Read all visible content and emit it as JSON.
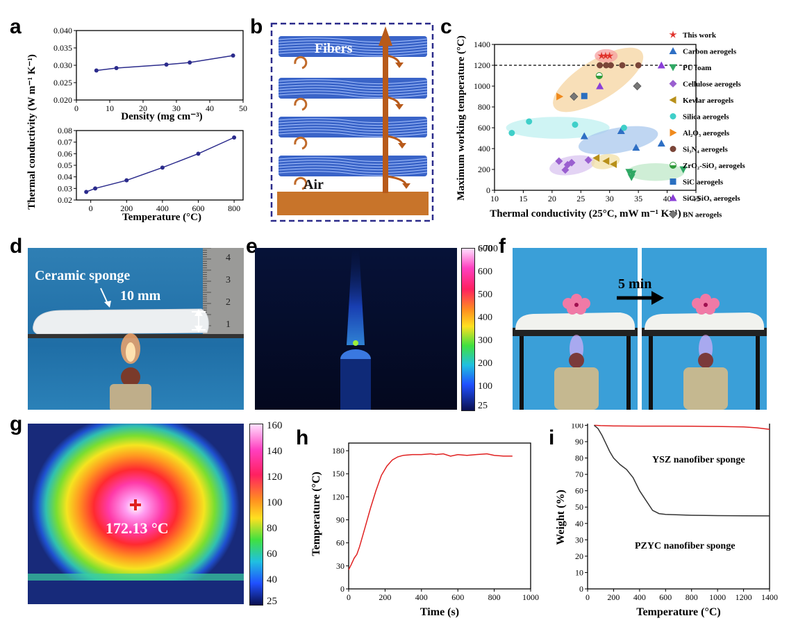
{
  "panel_labels": {
    "a": "a",
    "b": "b",
    "c": "c",
    "d": "d",
    "e": "e",
    "f": "f",
    "g": "g",
    "h": "h",
    "i": "i"
  },
  "panel_a": {
    "ylabel": "Thermal conductivity (W m⁻¹ K⁻¹)",
    "top_xlabel": "Density (mg cm⁻³)",
    "bottom_xlabel": "Temperature (°C)"
  },
  "panel_b": {
    "fibers_label": "Fibers",
    "air_label": "Air"
  },
  "panel_c": {
    "xlabel": "Thermal conductivity (25°C, mW m⁻¹ K⁻¹)",
    "ylabel": "Maximum working temperature (°C)",
    "legend": [
      {
        "label": "This work",
        "color": "#e0302a",
        "marker": "star"
      },
      {
        "label": "Carbon aerogels",
        "color": "#2e6fc4",
        "marker": "triangle-up"
      },
      {
        "label": "PU foam",
        "color": "#2fa864",
        "marker": "triangle-down"
      },
      {
        "label": "Cellulose aerogels",
        "color": "#9a5fd0",
        "marker": "diamond"
      },
      {
        "label": "Kevlar aerogels",
        "color": "#b8901a",
        "marker": "triangle-left"
      },
      {
        "label": "Silica aerogels",
        "color": "#3fcfc9",
        "marker": "circle"
      },
      {
        "label": "Al₂O₃ aerogels",
        "color": "#f08a1d",
        "marker": "triangle-right"
      },
      {
        "label": "Si₃N₄ aerogels",
        "color": "#7a4538",
        "marker": "circle"
      },
      {
        "label": "ZrO₂-SiO₂ aerogels",
        "color": "#2f9a3a",
        "marker": "half-circle"
      },
      {
        "label": "SiC aerogels",
        "color": "#2a6fc0",
        "marker": "square"
      },
      {
        "label": "SiC-SiOₓ aerogels",
        "color": "#8a3fd8",
        "marker": "half-triangle"
      },
      {
        "label": "BN aerogels",
        "color": "#777777",
        "marker": "half-diamond"
      }
    ]
  },
  "panel_d": {
    "sponge_label": "Ceramic sponge",
    "thickness_label": "10 mm",
    "ruler_digits": [
      "4",
      "3",
      "2",
      "1"
    ]
  },
  "panel_e": {
    "colorbar_ticks": [
      ">700",
      "600",
      "500",
      "400",
      "300",
      "200",
      "100",
      "25"
    ]
  },
  "panel_f": {
    "time_label": "5 min"
  },
  "panel_g": {
    "temperature_label": "172.13 °C",
    "colorbar_ticks": [
      "160",
      "140",
      "120",
      "100",
      "80",
      "60",
      "40",
      "25"
    ]
  },
  "chart_data": [
    {
      "panel": "a-top",
      "type": "line",
      "xlabel": "Density (mg cm⁻³)",
      "ylabel": "Thermal conductivity (W m⁻¹ K⁻¹)",
      "x": [
        6,
        12,
        27,
        34,
        47
      ],
      "y": [
        0.0285,
        0.0292,
        0.0302,
        0.0308,
        0.0328
      ],
      "xlim": [
        0,
        50
      ],
      "ylim": [
        0.02,
        0.04
      ],
      "xticks": [
        0,
        10,
        20,
        30,
        40,
        50
      ],
      "yticks": [
        "0.020",
        "0.025",
        "0.030",
        "0.035",
        "0.040"
      ],
      "color": "#2b2b8c"
    },
    {
      "panel": "a-bottom",
      "type": "line",
      "xlabel": "Temperature (°C)",
      "x": [
        -25,
        25,
        200,
        400,
        600,
        800
      ],
      "y": [
        0.027,
        0.03,
        0.037,
        0.048,
        0.06,
        0.074
      ],
      "xlim": [
        -80,
        850
      ],
      "ylim": [
        0.02,
        0.08
      ],
      "xticks": [
        0,
        200,
        400,
        600,
        800
      ],
      "yticks": [
        "0.02",
        "0.03",
        "0.04",
        "0.05",
        "0.06",
        "0.07",
        "0.08"
      ],
      "color": "#2b2b8c"
    },
    {
      "panel": "c",
      "type": "scatter",
      "xlim": [
        10,
        45
      ],
      "ylim": [
        0,
        1400
      ],
      "xticks": [
        10,
        15,
        20,
        25,
        30,
        35,
        40,
        45
      ],
      "yticks": [
        0,
        200,
        400,
        600,
        800,
        1000,
        1200,
        1400
      ],
      "hline": 1200,
      "series": [
        {
          "name": "This work",
          "points": [
            [
              28.6,
              1290
            ],
            [
              29.3,
              1290
            ],
            [
              30.0,
              1290
            ]
          ]
        },
        {
          "name": "Carbon aerogels",
          "points": [
            [
              25.6,
              520
            ],
            [
              32,
              570
            ],
            [
              34.6,
              410
            ],
            [
              39,
              450
            ]
          ]
        },
        {
          "name": "PU foam",
          "points": [
            [
              33.4,
              175
            ],
            [
              33.8,
              125
            ],
            [
              34,
              160
            ],
            [
              42.8,
              200
            ]
          ]
        },
        {
          "name": "Cellulose aerogels",
          "points": [
            [
              21.2,
              280
            ],
            [
              22.3,
              195
            ],
            [
              22.7,
              245
            ],
            [
              23.4,
              265
            ],
            [
              26.3,
              290
            ]
          ]
        },
        {
          "name": "Kevlar aerogels",
          "points": [
            [
              27.7,
              310
            ],
            [
              29.4,
              280
            ],
            [
              30.7,
              250
            ]
          ]
        },
        {
          "name": "Silica aerogels",
          "points": [
            [
              13,
              550
            ],
            [
              16,
              660
            ],
            [
              24,
              630
            ],
            [
              32.5,
              600
            ]
          ]
        },
        {
          "name": "Al₂O₃ aerogels",
          "points": [
            [
              21.3,
              900
            ]
          ]
        },
        {
          "name": "Si₃N₄ aerogels",
          "points": [
            [
              28.3,
              1200
            ],
            [
              29.4,
              1200
            ],
            [
              30.2,
              1200
            ],
            [
              32.2,
              1200
            ],
            [
              35,
              1200
            ]
          ]
        },
        {
          "name": "ZrO₂-SiO₂ aerogels",
          "points": [
            [
              28.2,
              1100
            ]
          ]
        },
        {
          "name": "SiC aerogels",
          "points": [
            [
              25.6,
              905
            ]
          ]
        },
        {
          "name": "SiC-SiOₓ aerogels",
          "points": [
            [
              28.3,
              1000
            ],
            [
              39,
              1200
            ]
          ]
        },
        {
          "name": "BN aerogels",
          "points": [
            [
              23.8,
              900
            ],
            [
              34.8,
              1000
            ]
          ]
        }
      ]
    },
    {
      "panel": "h",
      "type": "line",
      "xlabel": "Time (s)",
      "ylabel": "Temperature (°C)",
      "xlim": [
        0,
        1000
      ],
      "ylim": [
        0,
        190
      ],
      "xticks": [
        0,
        200,
        400,
        600,
        800,
        1000
      ],
      "yticks": [
        0,
        30,
        60,
        90,
        120,
        150,
        180
      ],
      "color": "#e02020",
      "x": [
        0,
        15,
        30,
        45,
        60,
        90,
        120,
        150,
        180,
        210,
        240,
        270,
        300,
        350,
        400,
        450,
        480,
        520,
        560,
        600,
        650,
        700,
        760,
        800,
        850,
        900
      ],
      "y": [
        25,
        32,
        40,
        45,
        55,
        80,
        105,
        128,
        148,
        160,
        168,
        172,
        174,
        175,
        175,
        176,
        175,
        176,
        173,
        175,
        174,
        175,
        176,
        174,
        173,
        173
      ]
    },
    {
      "panel": "i",
      "type": "line",
      "xlabel": "Temperature (°C)",
      "ylabel": "Weight (%)",
      "xlim": [
        0,
        1400
      ],
      "ylim": [
        0,
        104
      ],
      "xticks": [
        0,
        200,
        400,
        600,
        800,
        1000,
        1200,
        1400
      ],
      "yticks": [
        0,
        10,
        20,
        30,
        40,
        50,
        60,
        70,
        80,
        90,
        100
      ],
      "series": [
        {
          "name": "YSZ nanofiber sponge",
          "color": "#e02020",
          "x": [
            50,
            100,
            200,
            400,
            600,
            800,
            1000,
            1200,
            1300,
            1400
          ],
          "y": [
            100,
            99.8,
            99.6,
            99.5,
            99.5,
            99.4,
            99.3,
            99,
            98.5,
            97.5
          ]
        },
        {
          "name": "PZYC nanofiber sponge",
          "color": "#333333",
          "x": [
            50,
            80,
            110,
            140,
            170,
            200,
            250,
            300,
            350,
            400,
            450,
            500,
            550,
            600,
            800,
            1000,
            1200,
            1400
          ],
          "y": [
            100,
            98,
            94,
            89,
            84,
            80,
            76,
            73,
            68,
            60,
            54,
            48,
            46,
            45.5,
            45,
            44.8,
            44.7,
            44.6
          ]
        }
      ]
    }
  ]
}
